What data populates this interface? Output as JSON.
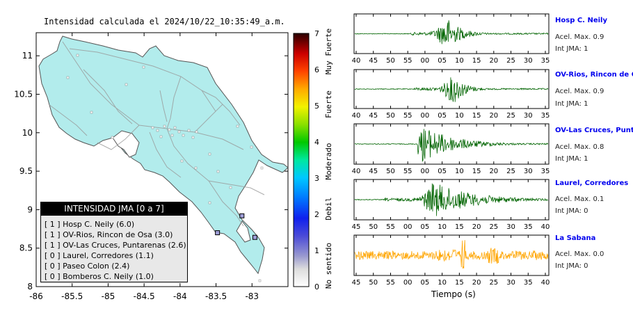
{
  "map": {
    "title": "Intensidad calculada el 2024/10/22_10:35:49_a.m.",
    "xticks": [
      "-86",
      "-85.5",
      "-85",
      "-84.5",
      "-84",
      "-83.5",
      "-83"
    ],
    "yticks": [
      "11",
      "10.5",
      "10",
      "9.5",
      "9",
      "8.5",
      "8"
    ],
    "xlim": [
      -86,
      -82.5
    ],
    "ylim": [
      8,
      11.3
    ],
    "land_color": "#b2ecec"
  },
  "colorbar": {
    "ticks": [
      "0",
      "1",
      "2",
      "3",
      "4",
      "5",
      "6",
      "7"
    ],
    "labels": [
      "No sentido",
      "Debil",
      "Moderado",
      "Fuerte",
      "Muy Fuerte"
    ]
  },
  "legend": {
    "title": "INTENSIDAD JMA [0 a 7]",
    "items": [
      "[ 1 ]  Hosp C. Neily (6.0)",
      "[ 1 ]  OV-Rios, Rincon de Osa (3.0)",
      "[ 1 ]  OV-Las Cruces, Puntarenas (2.6)",
      "[ 0 ]  Laurel, Corredores (1.1)",
      "[ 0 ]  Paseo Colon (2.4)",
      "[ 0 ]  Bomberos C. Neily (1.0)"
    ]
  },
  "waveforms": {
    "xlabel": "Tiempo (s)",
    "ticks_a": [
      "40",
      "45",
      "50",
      "55",
      "00",
      "05",
      "10",
      "15",
      "20",
      "25",
      "30",
      "35"
    ],
    "ticks_b": [
      "45",
      "50",
      "55",
      "00",
      "05",
      "10",
      "15",
      "20",
      "25",
      "30",
      "35",
      "40"
    ],
    "stations": [
      {
        "name": "Hosp C. Neily",
        "acc": "Acel. Max. 0.9",
        "jma": "Int JMA: 1",
        "color": "#006400"
      },
      {
        "name": "OV-Rios, Rincon de Os",
        "acc": "Acel. Max. 0.9",
        "jma": "Int JMA: 1",
        "color": "#006400"
      },
      {
        "name": "OV-Las Cruces, Puntar",
        "acc": "Acel. Max. 0.8",
        "jma": "Int JMA: 1",
        "color": "#006400"
      },
      {
        "name": "Laurel, Corredores",
        "acc": "Acel. Max. 0.1",
        "jma": "Int JMA: 0",
        "color": "#006400"
      },
      {
        "name": "La Sabana",
        "acc": "Acel. Max. 0.0",
        "jma": "Int JMA: 0",
        "color": "#ffa500"
      }
    ]
  },
  "chart_data": [
    {
      "type": "scatter",
      "title": "Intensidad calculada el 2024/10/22_10:35:49_a.m.",
      "xlabel": "",
      "ylabel": "",
      "xlim": [
        -86,
        -82.5
      ],
      "ylim": [
        8,
        11.3
      ],
      "legend_title": "INTENSIDAD JMA [0 a 7]",
      "series": [
        {
          "name": "[ 1 ] Hosp C. Neily (6.0)",
          "x": [
            -82.96
          ],
          "y": [
            8.64
          ]
        },
        {
          "name": "[ 1 ] OV-Rios, Rincon de Osa (3.0)",
          "x": [
            -83.48
          ],
          "y": [
            8.7
          ]
        },
        {
          "name": "[ 1 ] OV-Las Cruces, Puntarenas (2.6)",
          "x": [
            -83.14
          ],
          "y": [
            8.92
          ]
        }
      ]
    },
    {
      "type": "heatmap",
      "colorbar_range": [
        0,
        7
      ],
      "colorbar_labels": [
        "No sentido",
        "Debil",
        "Moderado",
        "Fuerte",
        "Muy Fuerte"
      ]
    }
  ]
}
